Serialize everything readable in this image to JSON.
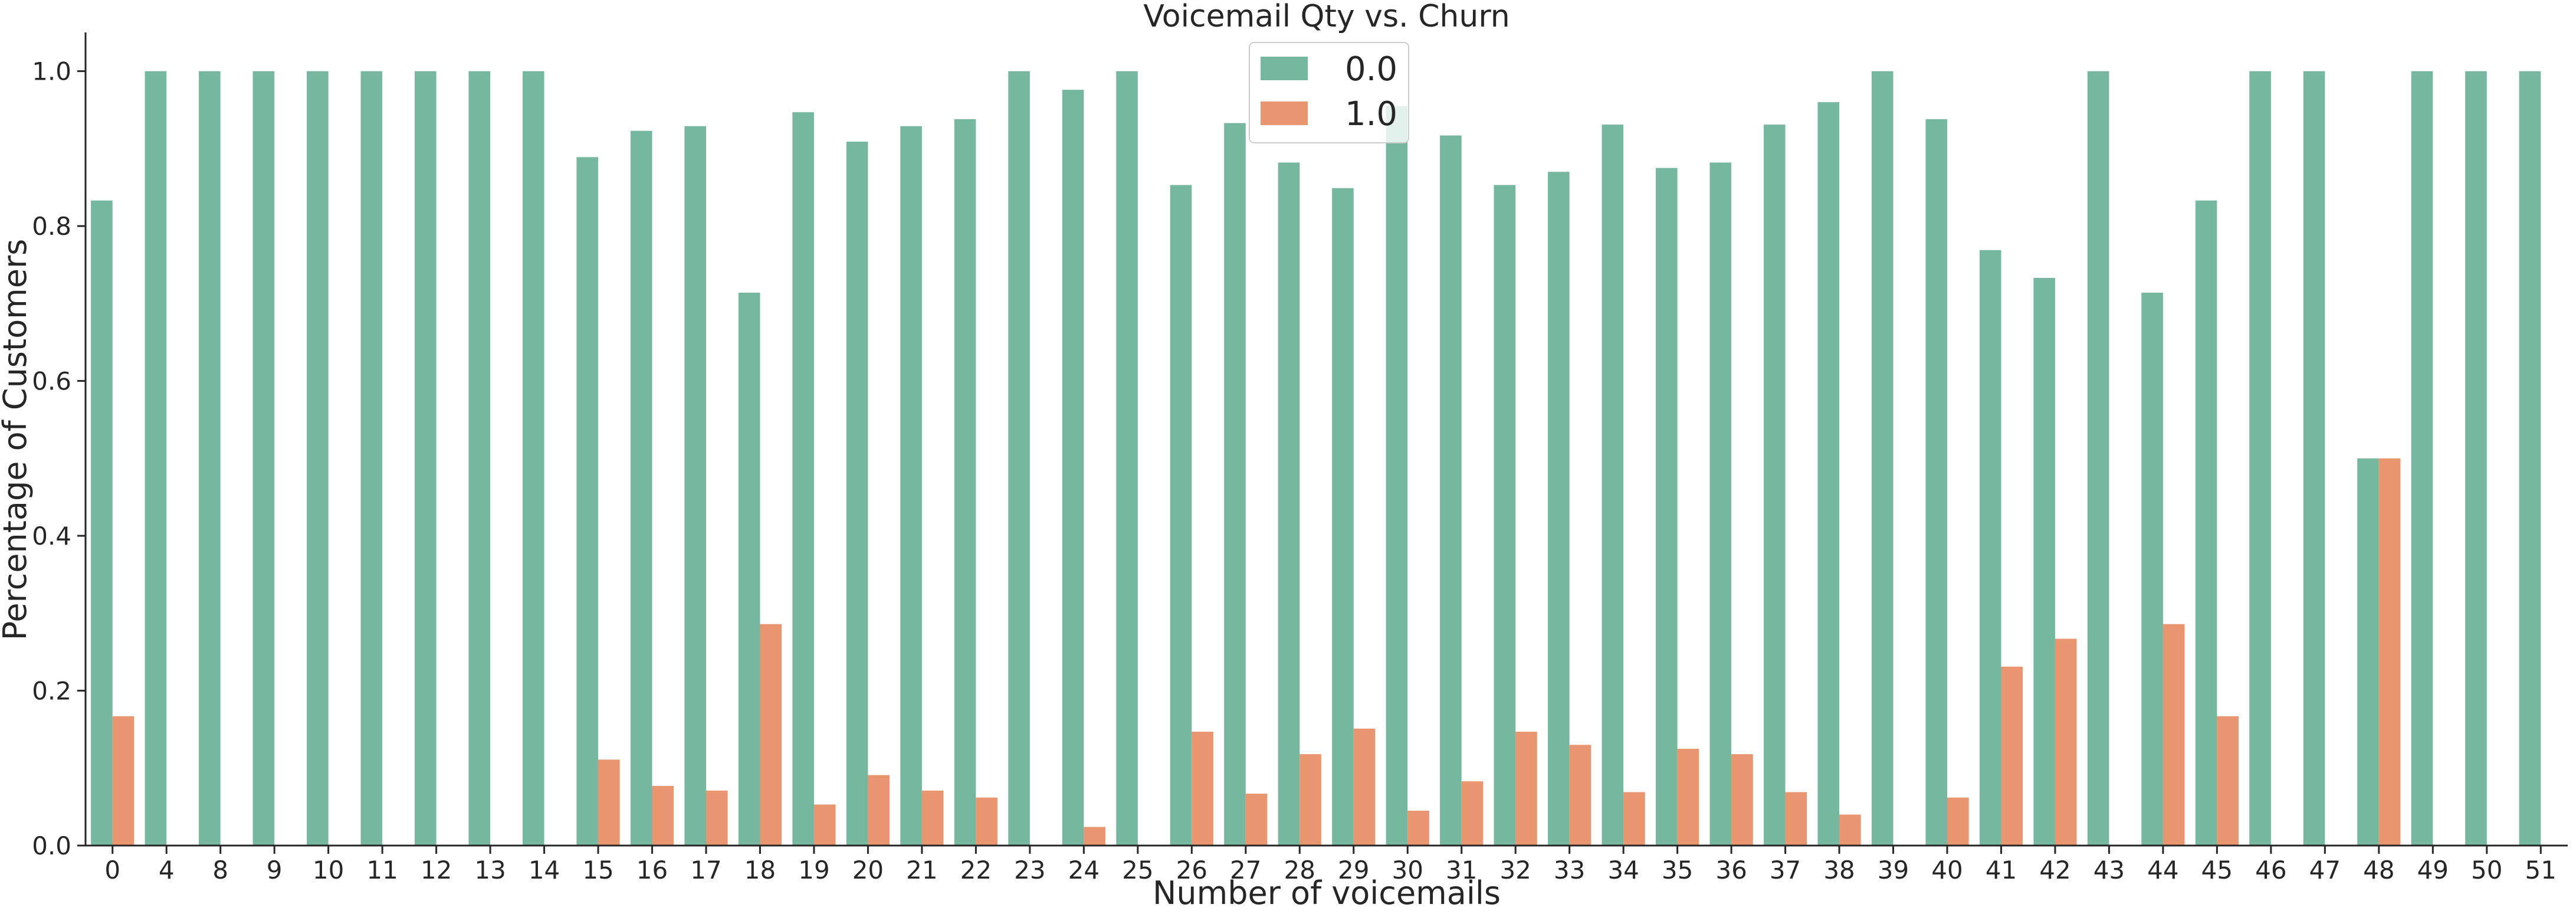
{
  "chart_data": {
    "type": "bar",
    "title": "Voicemail Qty vs. Churn",
    "xlabel": "Number of voicemails",
    "ylabel": "Percentage of Customers",
    "ylim": [
      0,
      1.05
    ],
    "yticks": [
      "0.0",
      "0.2",
      "0.4",
      "0.6",
      "0.8",
      "1.0"
    ],
    "grid": false,
    "legend_position": "top-center",
    "categories": [
      "0",
      "4",
      "8",
      "9",
      "10",
      "11",
      "12",
      "13",
      "14",
      "15",
      "16",
      "17",
      "18",
      "19",
      "20",
      "21",
      "22",
      "23",
      "24",
      "25",
      "26",
      "27",
      "28",
      "29",
      "30",
      "31",
      "32",
      "33",
      "34",
      "35",
      "36",
      "37",
      "38",
      "39",
      "40",
      "41",
      "42",
      "43",
      "44",
      "45",
      "46",
      "47",
      "48",
      "49",
      "50",
      "51"
    ],
    "series": [
      {
        "name": "0.0",
        "color": "#76b7a0",
        "values": [
          0.833,
          1.0,
          1.0,
          1.0,
          1.0,
          1.0,
          1.0,
          1.0,
          1.0,
          0.889,
          0.923,
          0.929,
          0.714,
          0.947,
          0.909,
          0.929,
          0.938,
          1.0,
          0.976,
          1.0,
          0.853,
          0.933,
          0.882,
          0.849,
          0.955,
          0.917,
          0.853,
          0.87,
          0.931,
          0.875,
          0.882,
          0.931,
          0.96,
          1.0,
          0.938,
          0.769,
          0.733,
          1.0,
          0.714,
          0.833,
          1.0,
          1.0,
          0.5,
          1.0,
          1.0,
          1.0
        ]
      },
      {
        "name": "1.0",
        "color": "#e9956f",
        "values": [
          0.167,
          0,
          0,
          0,
          0,
          0,
          0,
          0,
          0,
          0.111,
          0.077,
          0.071,
          0.286,
          0.053,
          0.091,
          0.071,
          0.062,
          0,
          0.024,
          0,
          0.147,
          0.067,
          0.118,
          0.151,
          0.045,
          0.083,
          0.147,
          0.13,
          0.069,
          0.125,
          0.118,
          0.069,
          0.04,
          0,
          0.062,
          0.231,
          0.267,
          0,
          0.286,
          0.167,
          0,
          0,
          0.5,
          0,
          0,
          0
        ]
      }
    ]
  }
}
